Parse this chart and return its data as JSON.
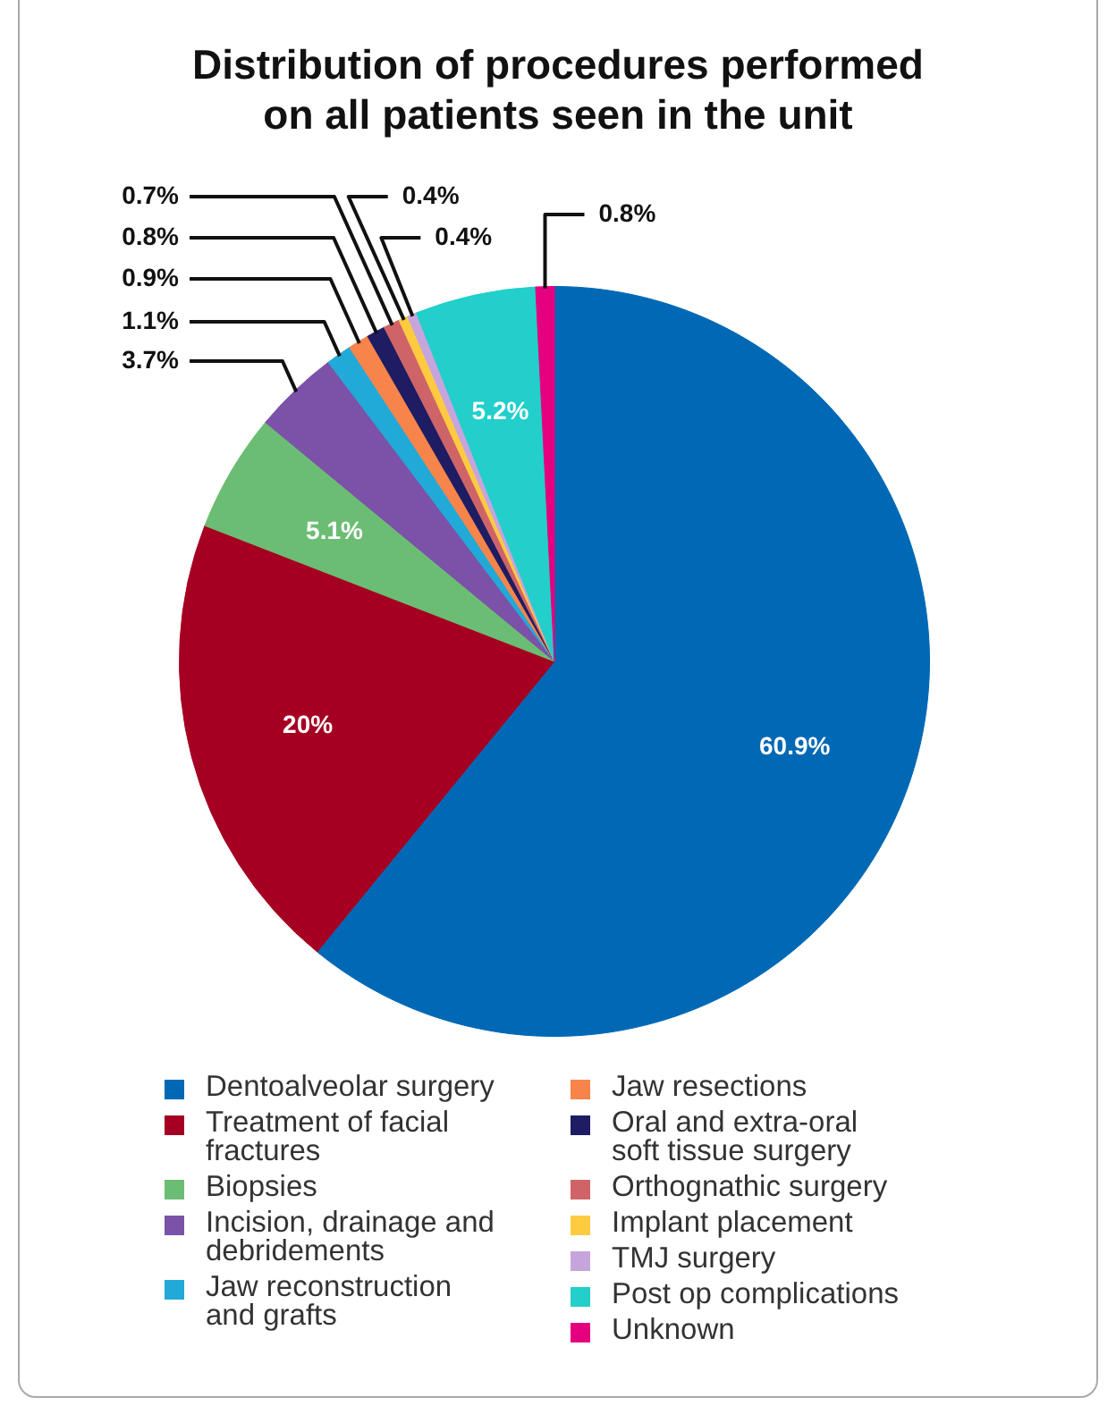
{
  "chart_data": {
    "type": "pie",
    "title": "Distribution of procedures performed on all patients seen in the unit",
    "categories": [
      "Dentoalveolar surgery",
      "Treatment of facial fractures",
      "Biopsies",
      "Incision, drainage and debridements",
      "Jaw reconstruction and grafts",
      "Jaw resections",
      "Oral and extra-oral soft tissue surgery",
      "Orthognathic surgery",
      "Implant placement",
      "TMJ surgery",
      "Post op complications",
      "Unknown"
    ],
    "values": [
      60.9,
      20,
      5.1,
      3.7,
      1.1,
      0.9,
      0.8,
      0.7,
      0.4,
      0.4,
      5.2,
      0.8
    ],
    "colors": [
      "#0068b4",
      "#a50022",
      "#6cbd74",
      "#7b52a8",
      "#21a9d8",
      "#f7844a",
      "#1e1c62",
      "#cf6468",
      "#fecb40",
      "#c6a4dc",
      "#22cfca",
      "#e5007f"
    ],
    "value_labels": [
      "60.9%",
      "20%",
      "5.1%",
      "3.7%",
      "1.1%",
      "0.9%",
      "0.8%",
      "0.7%",
      "0.4%",
      "0.4%",
      "5.2%",
      "0.8%"
    ],
    "legend": "bottom"
  }
}
